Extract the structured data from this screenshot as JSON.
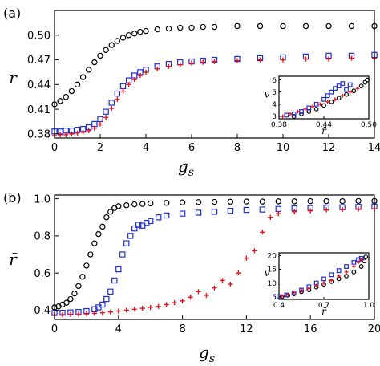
{
  "colors": {
    "series_1": "#000000",
    "series_2": "#1f2fd6",
    "series_3": "#e8141c"
  },
  "chart_data": [
    {
      "type": "scatter",
      "panel_label": "(a)",
      "xlabel": "g",
      "xlabel_sub": "s",
      "ylabel": "r",
      "xlim": [
        0,
        14
      ],
      "ylim": [
        0.375,
        0.53
      ],
      "xticks": [
        0,
        2,
        4,
        6,
        8,
        10,
        12,
        14
      ],
      "yticks": [
        0.38,
        0.41,
        0.44,
        0.47,
        0.5
      ],
      "ytick_labels": [
        "0.38",
        "0.41",
        "0.44",
        "0.47",
        "0.50"
      ],
      "grid": false,
      "series": [
        {
          "marker": "circle",
          "color": "#000000",
          "x": [
            0,
            0.25,
            0.5,
            0.75,
            1,
            1.25,
            1.5,
            1.75,
            2,
            2.25,
            2.5,
            2.75,
            3,
            3.25,
            3.5,
            3.75,
            4,
            4.5,
            5,
            5.5,
            6,
            6.5,
            7,
            8,
            9,
            10,
            11,
            12,
            13,
            14
          ],
          "y": [
            0.416,
            0.42,
            0.425,
            0.432,
            0.44,
            0.449,
            0.458,
            0.467,
            0.475,
            0.482,
            0.488,
            0.493,
            0.497,
            0.5,
            0.502,
            0.504,
            0.505,
            0.507,
            0.508,
            0.509,
            0.509,
            0.51,
            0.51,
            0.511,
            0.511,
            0.511,
            0.511,
            0.511,
            0.511,
            0.511
          ]
        },
        {
          "marker": "square",
          "color": "#1f2fd6",
          "x": [
            0,
            0.25,
            0.5,
            0.75,
            1,
            1.25,
            1.5,
            1.75,
            2,
            2.25,
            2.5,
            2.75,
            3,
            3.25,
            3.5,
            3.75,
            4,
            4.5,
            5,
            5.5,
            6,
            6.5,
            7,
            8,
            9,
            10,
            11,
            12,
            13,
            14
          ],
          "y": [
            0.383,
            0.383,
            0.384,
            0.384,
            0.385,
            0.386,
            0.388,
            0.392,
            0.398,
            0.407,
            0.418,
            0.429,
            0.438,
            0.445,
            0.451,
            0.455,
            0.458,
            0.462,
            0.465,
            0.467,
            0.468,
            0.469,
            0.47,
            0.471,
            0.472,
            0.473,
            0.474,
            0.475,
            0.475,
            0.476
          ]
        },
        {
          "marker": "plus",
          "color": "#e8141c",
          "x": [
            0,
            0.25,
            0.5,
            0.75,
            1,
            1.25,
            1.5,
            1.75,
            2,
            2.25,
            2.5,
            2.75,
            3,
            3.25,
            3.5,
            3.75,
            4,
            4.5,
            5,
            5.5,
            6,
            6.5,
            7,
            8,
            9,
            10,
            11,
            12,
            13,
            14
          ],
          "y": [
            0.378,
            0.379,
            0.379,
            0.38,
            0.381,
            0.382,
            0.384,
            0.387,
            0.392,
            0.4,
            0.411,
            0.422,
            0.432,
            0.44,
            0.446,
            0.451,
            0.455,
            0.459,
            0.462,
            0.464,
            0.466,
            0.467,
            0.468,
            0.469,
            0.47,
            0.47,
            0.471,
            0.471,
            0.472,
            0.472
          ]
        }
      ],
      "inset": {
        "xlabel": "r̄",
        "ylabel": "v",
        "xlim": [
          0.38,
          0.5
        ],
        "ylim": [
          2.8,
          6.3
        ],
        "xticks": [
          0.38,
          0.44,
          0.5
        ],
        "xtick_labels": [
          "0.38",
          "0.44",
          "0.50"
        ],
        "yticks": [
          3,
          4,
          5,
          6
        ],
        "series": [
          {
            "marker": "circle",
            "color": "#000000",
            "x": [
              0.4,
              0.41,
              0.42,
              0.43,
              0.44,
              0.45,
              0.46,
              0.47,
              0.48,
              0.49,
              0.495,
              0.498
            ],
            "y": [
              3.0,
              3.2,
              3.4,
              3.6,
              3.9,
              4.2,
              4.5,
              4.8,
              5.1,
              5.5,
              5.8,
              6.0
            ]
          },
          {
            "marker": "square",
            "color": "#1f2fd6",
            "x": [
              0.39,
              0.4,
              0.41,
              0.42,
              0.43,
              0.44,
              0.445,
              0.45,
              0.455,
              0.46,
              0.465,
              0.47,
              0.475
            ],
            "y": [
              3.1,
              3.2,
              3.4,
              3.7,
              4.0,
              4.4,
              4.7,
              5.0,
              5.3,
              5.5,
              5.7,
              5.2,
              5.6
            ]
          },
          {
            "marker": "plus",
            "color": "#e8141c",
            "x": [
              0.385,
              0.395,
              0.405,
              0.415,
              0.425,
              0.435,
              0.445,
              0.455,
              0.465,
              0.475,
              0.485
            ],
            "y": [
              3.0,
              3.2,
              3.4,
              3.6,
              3.8,
              4.0,
              4.2,
              4.4,
              4.7,
              5.0,
              5.3
            ]
          }
        ]
      }
    },
    {
      "type": "scatter",
      "panel_label": "(b)",
      "xlabel": "g",
      "xlabel_sub": "s",
      "ylabel": "r̄",
      "xlim": [
        0,
        20
      ],
      "ylim": [
        0.35,
        1.02
      ],
      "xticks": [
        0,
        4,
        8,
        12,
        16,
        20
      ],
      "yticks": [
        0.4,
        0.6,
        0.8,
        1.0
      ],
      "ytick_labels": [
        "0.4",
        "0.6",
        "0.8",
        "1.0"
      ],
      "grid": false,
      "series": [
        {
          "marker": "circle",
          "color": "#000000",
          "x": [
            0,
            0.25,
            0.5,
            0.75,
            1,
            1.25,
            1.5,
            1.75,
            2,
            2.25,
            2.5,
            2.75,
            3,
            3.25,
            3.5,
            3.75,
            4,
            4.5,
            5,
            5.5,
            6,
            7,
            8,
            9,
            10,
            11,
            12,
            13,
            14,
            15,
            16,
            17,
            18,
            19,
            20
          ],
          "y": [
            0.415,
            0.42,
            0.43,
            0.44,
            0.46,
            0.49,
            0.53,
            0.58,
            0.64,
            0.7,
            0.76,
            0.81,
            0.85,
            0.9,
            0.93,
            0.95,
            0.96,
            0.965,
            0.97,
            0.972,
            0.975,
            0.978,
            0.98,
            0.982,
            0.983,
            0.984,
            0.985,
            0.985,
            0.986,
            0.986,
            0.987,
            0.987,
            0.987,
            0.988,
            0.988
          ]
        },
        {
          "marker": "square",
          "color": "#1f2fd6",
          "x": [
            0,
            0.5,
            1,
            1.5,
            2,
            2.5,
            2.75,
            3,
            3.25,
            3.5,
            3.75,
            4,
            4.25,
            4.5,
            4.75,
            5,
            5.25,
            5.5,
            5.75,
            6,
            6.5,
            7,
            8,
            9,
            10,
            11,
            12,
            13,
            14,
            15,
            16,
            17,
            18,
            19,
            20
          ],
          "y": [
            0.385,
            0.386,
            0.388,
            0.39,
            0.395,
            0.405,
            0.415,
            0.43,
            0.46,
            0.5,
            0.56,
            0.62,
            0.7,
            0.76,
            0.8,
            0.84,
            0.86,
            0.855,
            0.87,
            0.88,
            0.9,
            0.91,
            0.92,
            0.925,
            0.93,
            0.935,
            0.94,
            0.942,
            0.945,
            0.948,
            0.95,
            0.952,
            0.954,
            0.956,
            0.958
          ]
        },
        {
          "marker": "plus",
          "color": "#e8141c",
          "x": [
            0,
            0.5,
            1,
            1.5,
            2,
            2.5,
            3,
            3.5,
            4,
            4.5,
            5,
            5.5,
            6,
            6.5,
            7,
            7.5,
            8,
            8.5,
            9,
            9.5,
            10,
            10.5,
            11,
            11.5,
            12,
            12.5,
            13,
            13.5,
            14,
            15,
            16,
            17,
            18,
            19,
            20
          ],
          "y": [
            0.375,
            0.376,
            0.377,
            0.378,
            0.38,
            0.383,
            0.386,
            0.39,
            0.395,
            0.4,
            0.405,
            0.41,
            0.415,
            0.42,
            0.43,
            0.44,
            0.45,
            0.47,
            0.5,
            0.48,
            0.52,
            0.56,
            0.54,
            0.6,
            0.68,
            0.72,
            0.82,
            0.9,
            0.92,
            0.93,
            0.935,
            0.94,
            0.942,
            0.944,
            0.946
          ]
        }
      ],
      "inset": {
        "xlabel": "r̄",
        "ylabel": "v",
        "xlim": [
          0.4,
          1.0
        ],
        "ylim": [
          4,
          21
        ],
        "xticks": [
          0.4,
          0.7,
          1.0
        ],
        "xtick_labels": [
          "0.4",
          "0.7",
          "1.0"
        ],
        "yticks": [
          5,
          10,
          15,
          20
        ],
        "series": [
          {
            "marker": "circle",
            "color": "#000000",
            "x": [
              0.42,
              0.46,
              0.5,
              0.55,
              0.6,
              0.65,
              0.7,
              0.75,
              0.8,
              0.85,
              0.9,
              0.95,
              0.97,
              0.98
            ],
            "y": [
              5.0,
              5.5,
              6.0,
              6.8,
              7.5,
              8.5,
              9.5,
              10.5,
              11.5,
              12.5,
              14.0,
              16.0,
              18.0,
              19.5
            ]
          },
          {
            "marker": "square",
            "color": "#1f2fd6",
            "x": [
              0.4,
              0.45,
              0.5,
              0.55,
              0.6,
              0.65,
              0.7,
              0.75,
              0.8,
              0.85,
              0.9,
              0.93,
              0.95
            ],
            "y": [
              5.0,
              5.6,
              6.4,
              7.4,
              8.6,
              10.0,
              11.5,
              13.0,
              14.5,
              16.0,
              17.5,
              18.5,
              19.0
            ]
          },
          {
            "marker": "plus",
            "color": "#e8141c",
            "x": [
              0.38,
              0.42,
              0.46,
              0.5,
              0.55,
              0.6,
              0.65,
              0.7,
              0.75,
              0.8,
              0.85,
              0.9,
              0.93,
              0.95
            ],
            "y": [
              4.8,
              5.2,
              5.8,
              6.5,
              7.2,
              8.0,
              9.0,
              10.0,
              11.0,
              12.5,
              14.0,
              16.0,
              17.5,
              18.5
            ]
          }
        ]
      }
    }
  ]
}
